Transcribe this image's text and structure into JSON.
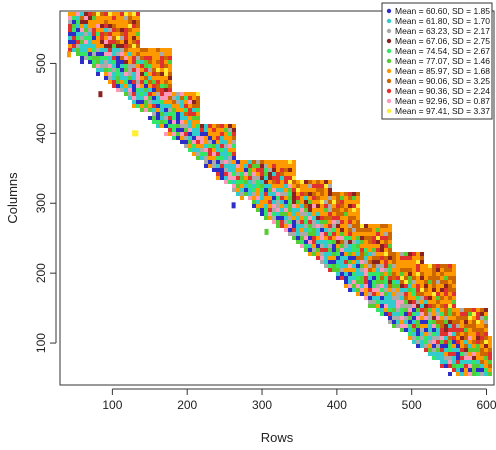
{
  "chart_data": {
    "type": "heatmap",
    "xlabel": "Rows",
    "ylabel": "Columns",
    "xlim": [
      30,
      610
    ],
    "ylim": [
      40,
      575
    ],
    "x_ticks": [
      100,
      200,
      300,
      400,
      500,
      600
    ],
    "y_ticks": [
      100,
      200,
      300,
      400,
      500
    ],
    "legend_position": "top-right",
    "series": [
      {
        "name": "Mean = 60.60, SD = 1.85",
        "color": "#2d2dc8"
      },
      {
        "name": "Mean = 61.80, SD = 1.70",
        "color": "#33cccc"
      },
      {
        "name": "Mean = 63.23, SD = 2.17",
        "color": "#aaaaaa"
      },
      {
        "name": "Mean = 67.06, SD = 2.75",
        "color": "#8b2222"
      },
      {
        "name": "Mean = 74.54, SD = 2.67",
        "color": "#33e666"
      },
      {
        "name": "Mean = 77.07, SD = 1.46",
        "color": "#55cc33"
      },
      {
        "name": "Mean = 85.97, SD = 1.68",
        "color": "#ff9900"
      },
      {
        "name": "Mean = 90.06, SD = 3.25",
        "color": "#cc6600"
      },
      {
        "name": "Mean = 90.36, SD = 2.24",
        "color": "#e03030"
      },
      {
        "name": "Mean = 92.96, SD = 0.87",
        "color": "#ff99bb"
      },
      {
        "name": "Mean = 97.41, SD = 3.37",
        "color": "#ffee33"
      }
    ],
    "blocks": [
      {
        "x": [
          45,
          135
        ],
        "y": [
          475,
          573
        ]
      },
      {
        "x": [
          100,
          175
        ],
        "y": [
          430,
          518
        ]
      },
      {
        "x": [
          120,
          215
        ],
        "y": [
          375,
          455
        ]
      },
      {
        "x": [
          165,
          260
        ],
        "y": [
          330,
          410
        ]
      },
      {
        "x": [
          210,
          345
        ],
        "y": [
          265,
          360
        ]
      },
      {
        "x": [
          260,
          390
        ],
        "y": [
          230,
          330
        ]
      },
      {
        "x": [
          300,
          430
        ],
        "y": [
          210,
          315
        ]
      },
      {
        "x": [
          340,
          470
        ],
        "y": [
          170,
          265
        ]
      },
      {
        "x": [
          385,
          515
        ],
        "y": [
          135,
          230
        ]
      },
      {
        "x": [
          420,
          555
        ],
        "y": [
          100,
          210
        ]
      },
      {
        "x": [
          470,
          600
        ],
        "y": [
          70,
          150
        ]
      },
      {
        "x": [
          520,
          605
        ],
        "y": [
          55,
          110
        ]
      }
    ],
    "outliers": [
      {
        "x": 42,
        "y": 513,
        "series": 6
      },
      {
        "x": 84,
        "y": 456,
        "series": 3
      },
      {
        "x": 129,
        "y": 400,
        "series": 10
      },
      {
        "x": 132,
        "y": 400,
        "series": 10
      },
      {
        "x": 262,
        "y": 297,
        "series": 0
      },
      {
        "x": 306,
        "y": 259,
        "series": 5
      }
    ]
  }
}
